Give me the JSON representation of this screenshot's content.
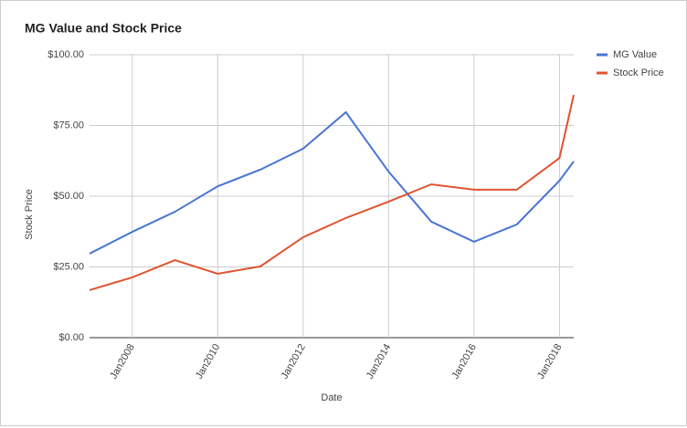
{
  "chart_data": {
    "type": "line",
    "title": "MG Value and Stock Price",
    "x_label": "Date",
    "y_label": "Stock Price",
    "x": [
      "2007-01",
      "2008-01",
      "2009-01",
      "2010-01",
      "2011-01",
      "2012-01",
      "2013-01",
      "2014-01",
      "2015-01",
      "2016-01",
      "2017-01",
      "2018-01",
      "2018-05"
    ],
    "xlim": [
      "2007-01",
      "2018-05"
    ],
    "xticks": [
      {
        "value": "2008-01",
        "label": "Jan2008"
      },
      {
        "value": "2010-01",
        "label": "Jan2010"
      },
      {
        "value": "2012-01",
        "label": "Jan2012"
      },
      {
        "value": "2014-01",
        "label": "Jan2014"
      },
      {
        "value": "2016-01",
        "label": "Jan2016"
      },
      {
        "value": "2018-01",
        "label": "Jan2018"
      }
    ],
    "ylim": [
      0,
      100
    ],
    "yticks": [
      {
        "value": 0,
        "label": "$0.00"
      },
      {
        "value": 25,
        "label": "$25.00"
      },
      {
        "value": 50,
        "label": "$50.00"
      },
      {
        "value": 75,
        "label": "$75.00"
      },
      {
        "value": 100,
        "label": "$100.00"
      }
    ],
    "grid": true,
    "legend": "right",
    "series": [
      {
        "name": "MG Value",
        "color": "#4a74d4",
        "values": [
          29.7,
          37.4,
          44.5,
          53.5,
          59.4,
          66.8,
          79.7,
          58.7,
          41.0,
          33.9,
          40.0,
          55.5,
          62.3
        ]
      },
      {
        "name": "Stock Price",
        "color": "#df5430",
        "values": [
          16.8,
          21.3,
          27.4,
          22.6,
          25.2,
          35.5,
          42.3,
          48.1,
          54.2,
          52.3,
          52.3,
          63.5,
          85.8
        ]
      }
    ]
  }
}
